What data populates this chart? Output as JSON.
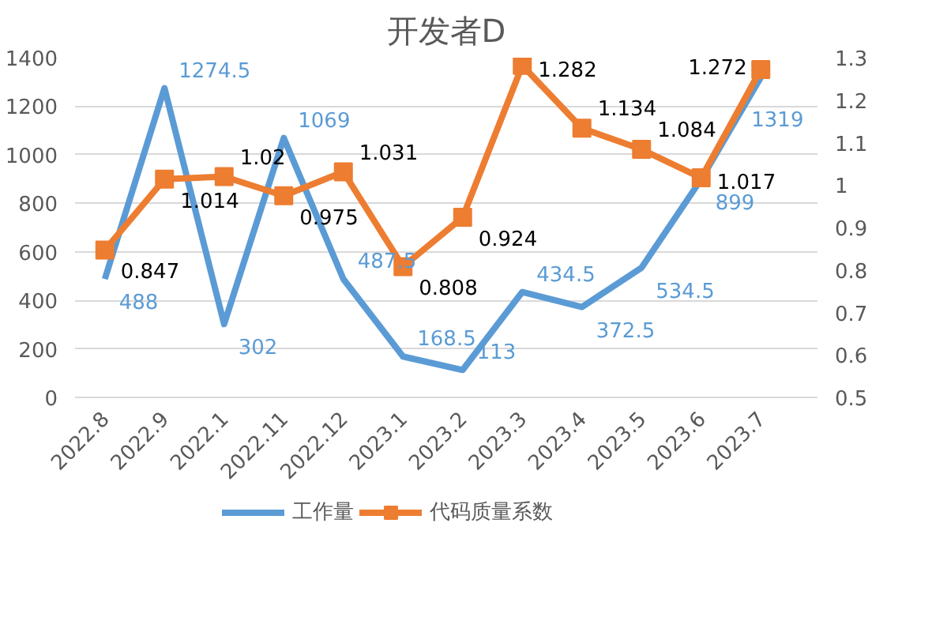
{
  "chart_data": {
    "type": "line",
    "title": "开发者D",
    "categories": [
      "2022.8",
      "2022.9",
      "2022.1",
      "2022.11",
      "2022.12",
      "2023.1",
      "2023.2",
      "2023.3",
      "2023.4",
      "2023.5",
      "2023.6",
      "2023.7"
    ],
    "series": [
      {
        "name": "工作量",
        "color": "#5b9bd5",
        "marker": "none",
        "values": [
          488,
          1274.5,
          302,
          1069,
          487.5,
          168.5,
          113,
          434.5,
          372.5,
          534.5,
          899,
          1319
        ]
      },
      {
        "name": "代码质量系数",
        "color": "#ed7d31",
        "marker": "square",
        "axis": "y2",
        "values": [
          0.847,
          1.014,
          1.02,
          0.975,
          1.031,
          0.808,
          0.924,
          1.282,
          1.134,
          1.084,
          1.017,
          1.272
        ]
      }
    ],
    "ylim": [
      0,
      1400
    ],
    "yticks": [
      0,
      200,
      400,
      600,
      800,
      1000,
      1200,
      1400
    ],
    "y2lim": [
      0.5,
      1.3
    ],
    "y2ticks": [
      0.5,
      0.6,
      0.7,
      0.8,
      0.9,
      1,
      1.1,
      1.2,
      1.3
    ],
    "grid": "y",
    "legend": "bottom",
    "data_labels": true
  }
}
